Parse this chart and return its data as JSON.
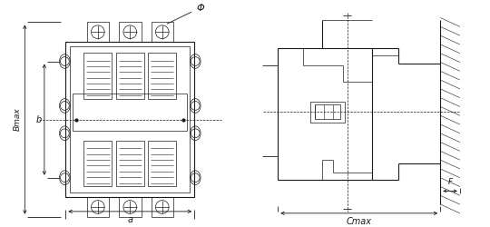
{
  "bg_color": "#ffffff",
  "line_color": "#1a1a1a",
  "lw_main": 0.8,
  "lw_thin": 0.5,
  "lw_dim": 0.6,
  "fig_w": 5.4,
  "fig_h": 2.5,
  "dpi": 100,
  "label_Phi": "Φ",
  "label_b": "b",
  "label_Bmax": "Bmax",
  "label_a": "a",
  "label_Cmax": "Cmax",
  "label_F": "F",
  "font_size": 7
}
